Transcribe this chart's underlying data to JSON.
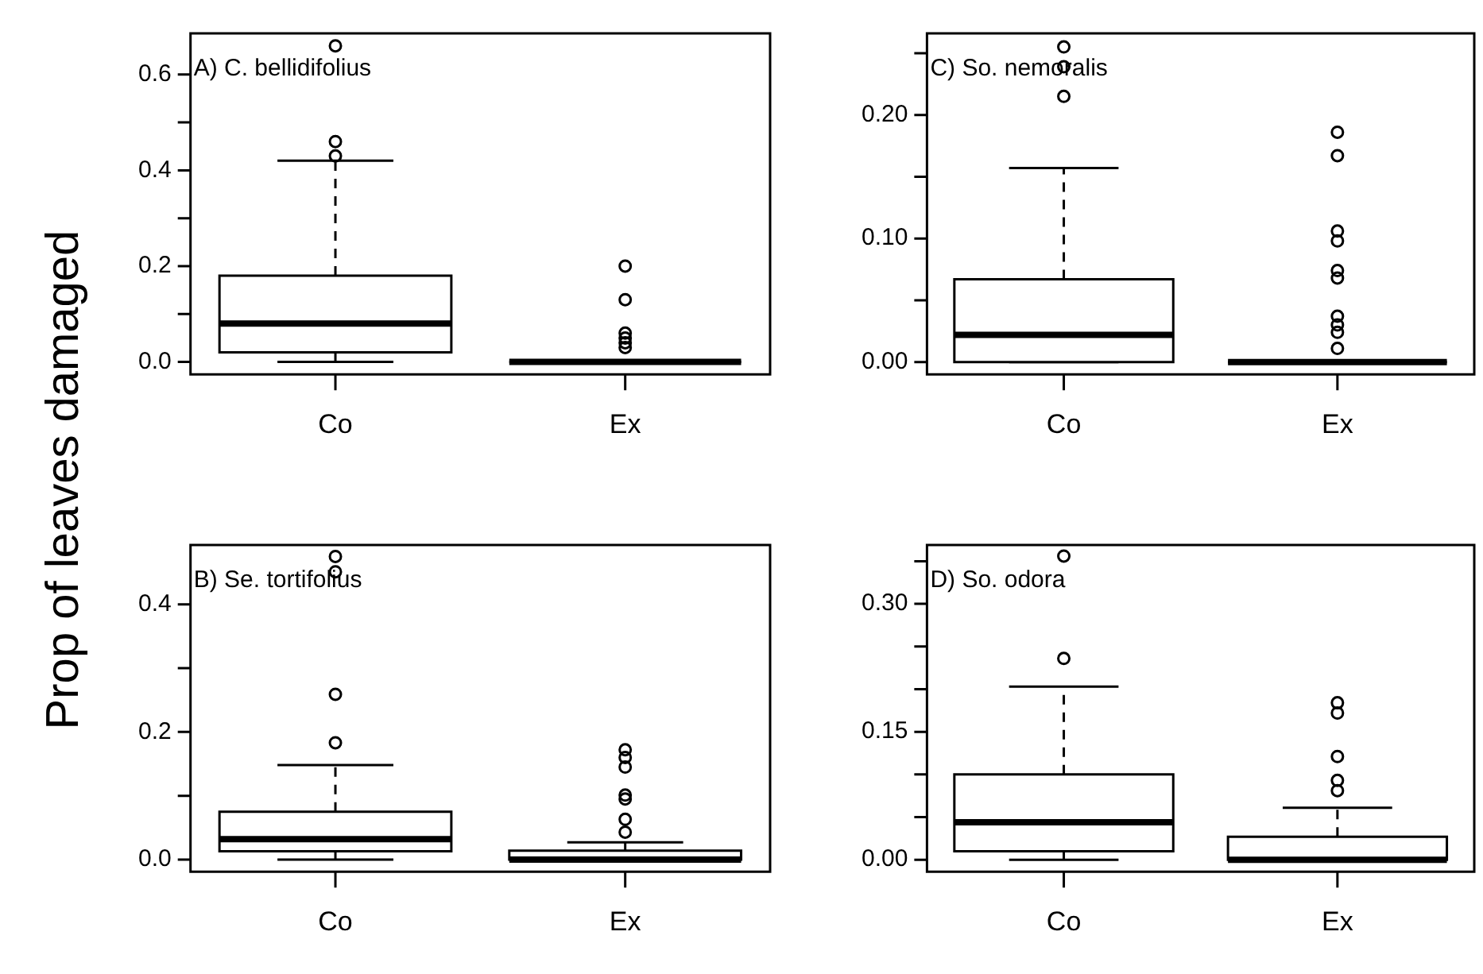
{
  "chart_data": [
    {
      "type": "box",
      "title": "A) C. bellidifolius",
      "ylabel": "Prop of leaves damaged",
      "categories": [
        "Co",
        "Ex"
      ],
      "boxes": [
        {
          "low": 0,
          "q1": 0.02,
          "median": 0.08,
          "q3": 0.18,
          "high": 0.42,
          "outliers": [
            0.43,
            0.46,
            0.66
          ]
        },
        {
          "low": 0,
          "q1": 0,
          "median": 0,
          "q3": 0,
          "high": 0,
          "outliers": [
            0.03,
            0.04,
            0.05,
            0.06,
            0.13,
            0.2
          ]
        }
      ],
      "ylim": [
        -0.026,
        0.686
      ],
      "yticks": [
        {
          "value": 0,
          "label": "0.0"
        },
        {
          "value": 0.1,
          "label": null
        },
        0.2,
        {
          "value": 0.3,
          "label": null
        },
        0.4,
        {
          "value": 0.5,
          "label": null
        },
        0.6
      ],
      "legend": false
    },
    {
      "type": "box",
      "title": "C) So. nemoralis",
      "categories": [
        "Co",
        "Ex"
      ],
      "boxes": [
        {
          "low": 0,
          "q1": 0,
          "median": 0.022,
          "q3": 0.067,
          "high": 0.157,
          "outliers": [
            0.215,
            0.239,
            0.255
          ]
        },
        {
          "low": 0,
          "q1": 0,
          "median": 0,
          "q3": 0,
          "high": 0,
          "outliers": [
            0.011,
            0.024,
            0.03,
            0.037,
            0.068,
            0.074,
            0.098,
            0.106,
            0.167,
            0.186
          ]
        }
      ],
      "ylim": [
        -0.01,
        0.266
      ],
      "yticks": [
        {
          "value": 0,
          "label": "0.00"
        },
        {
          "value": 0.05,
          "label": null
        },
        {
          "value": 0.1,
          "label": "0.10"
        },
        {
          "value": 0.15,
          "label": null
        },
        {
          "value": 0.2,
          "label": "0.20"
        },
        {
          "value": 0.25,
          "label": null
        }
      ],
      "legend": false
    },
    {
      "type": "box",
      "title": "B) Se. tortifolius",
      "categories": [
        "Co",
        "Ex"
      ],
      "boxes": [
        {
          "low": 0,
          "q1": 0.013,
          "median": 0.032,
          "q3": 0.075,
          "high": 0.148,
          "outliers": [
            0.183,
            0.259,
            0.451,
            0.475
          ]
        },
        {
          "low": 0,
          "q1": 0,
          "median": 0,
          "q3": 0.014,
          "high": 0.027,
          "outliers": [
            0.043,
            0.063,
            0.095,
            0.101,
            0.145,
            0.16,
            0.172
          ]
        }
      ],
      "ylim": [
        -0.019,
        0.493
      ],
      "yticks": [
        {
          "value": 0,
          "label": "0.0"
        },
        {
          "value": 0.1,
          "label": null
        },
        0.2,
        {
          "value": 0.3,
          "label": null
        },
        0.4
      ],
      "grid": false,
      "legend": false
    },
    {
      "type": "box",
      "title": "D) So. odora",
      "categories": [
        "Co",
        "Ex"
      ],
      "boxes": [
        {
          "low": 0,
          "q1": 0.01,
          "median": 0.044,
          "q3": 0.1,
          "high": 0.203,
          "outliers": [
            0.236,
            0.356
          ]
        },
        {
          "low": 0,
          "q1": 0,
          "median": 0,
          "q3": 0.027,
          "high": 0.061,
          "outliers": [
            0.081,
            0.093,
            0.121,
            0.172,
            0.184
          ]
        }
      ],
      "ylim": [
        -0.014,
        0.369
      ],
      "yticks": [
        {
          "value": 0,
          "label": "0.00"
        },
        {
          "value": 0.05,
          "label": null
        },
        {
          "value": 0.1,
          "label": null
        },
        0.15,
        {
          "value": 0.2,
          "label": null
        },
        {
          "value": 0.25,
          "label": null
        },
        {
          "value": 0.3,
          "label": "0.30"
        },
        {
          "value": 0.35,
          "label": null
        }
      ],
      "grid": false,
      "legend": false
    }
  ]
}
